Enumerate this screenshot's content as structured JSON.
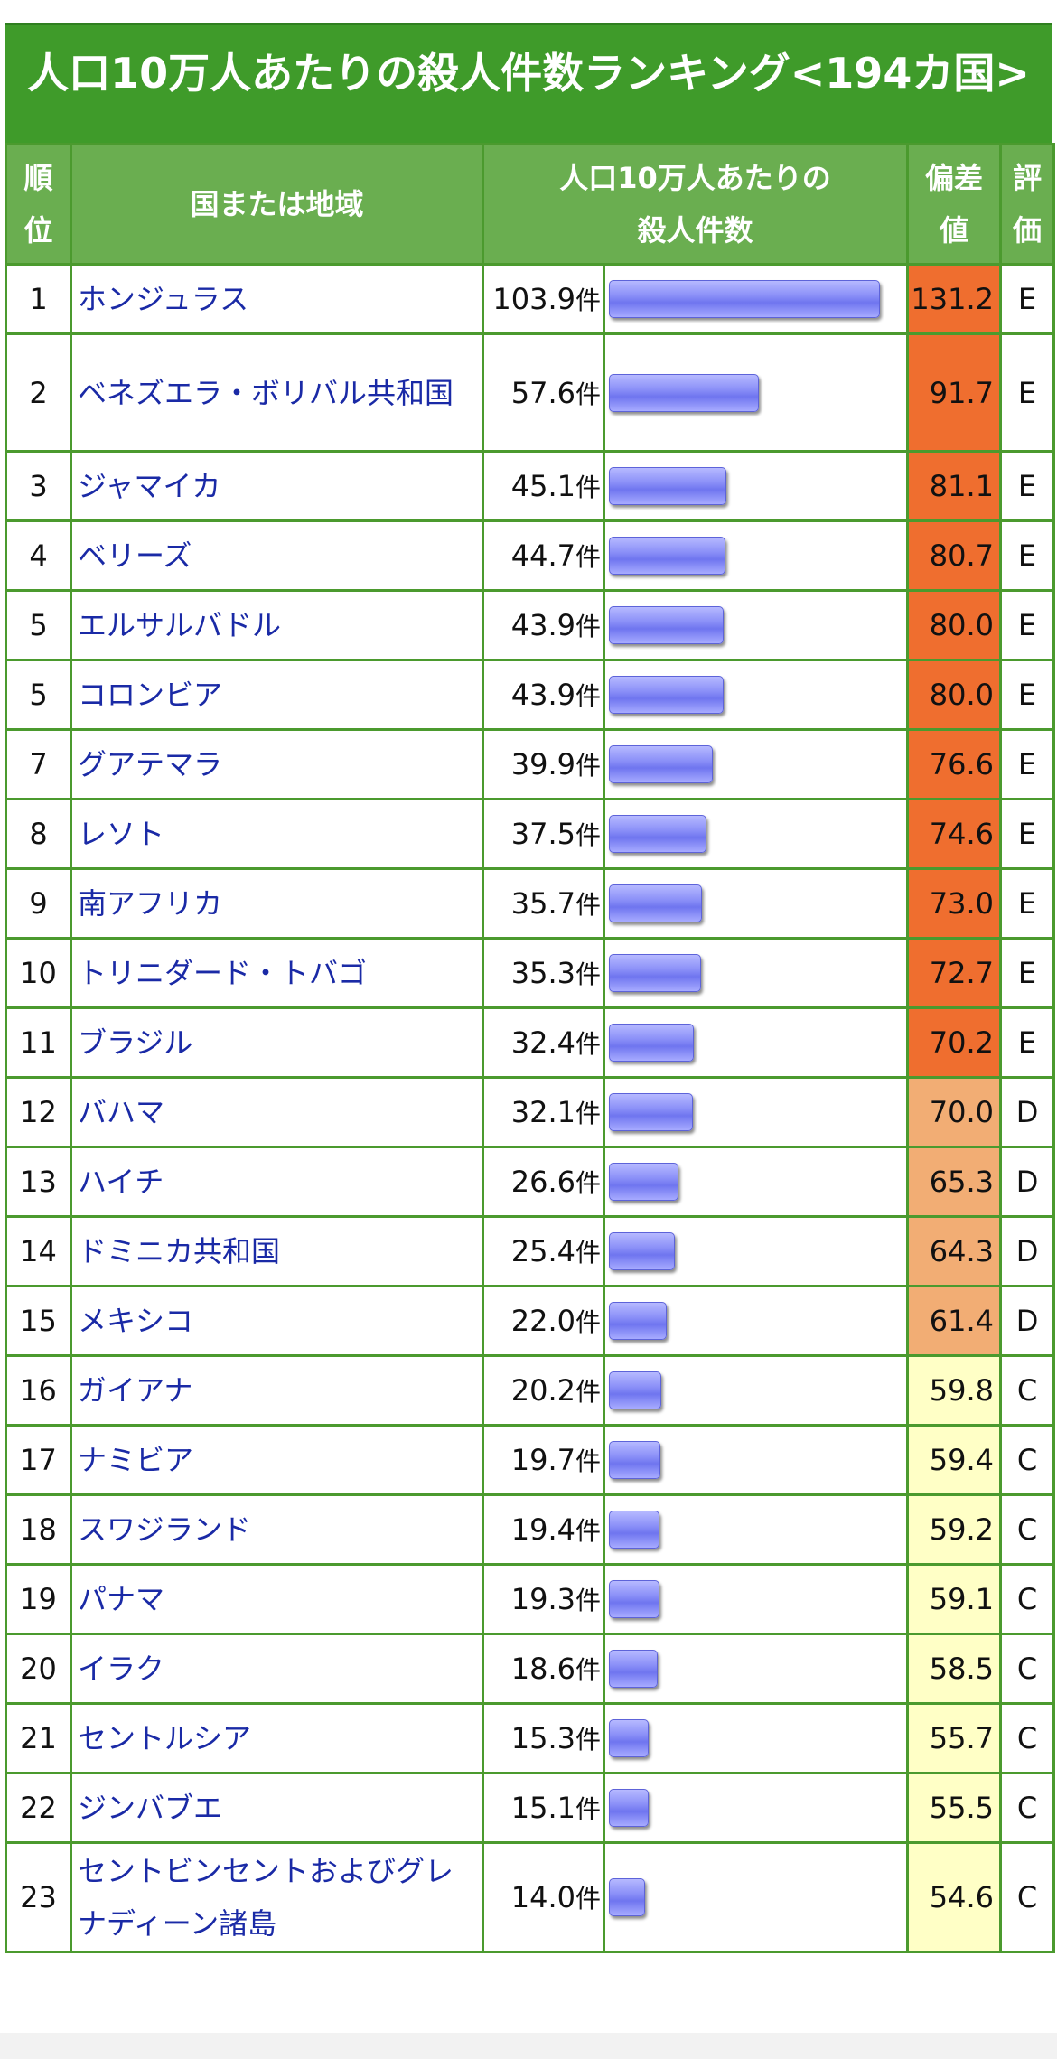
{
  "title": "人口10万人あたりの殺人件数ランキング<194カ国>",
  "headers": {
    "rank": "順位",
    "region": "国または地域",
    "value": "人口10万人あたりの殺人件数",
    "deviation": "偏差値",
    "grade": "評価"
  },
  "unit": "件",
  "grade_colors": {
    "E": "#ef6e2f",
    "D": "#f2ad74",
    "C": "#ffffc6"
  },
  "rows": [
    {
      "rank": "1",
      "name": "ホンジュラス",
      "value": 103.9,
      "value_text": "103.9",
      "deviation": "131.2",
      "grade": "E"
    },
    {
      "rank": "2",
      "name": "ベネズエラ・ボリバル共和国",
      "value": 57.6,
      "value_text": "57.6",
      "deviation": "91.7",
      "grade": "E"
    },
    {
      "rank": "3",
      "name": "ジャマイカ",
      "value": 45.1,
      "value_text": "45.1",
      "deviation": "81.1",
      "grade": "E"
    },
    {
      "rank": "4",
      "name": "ベリーズ",
      "value": 44.7,
      "value_text": "44.7",
      "deviation": "80.7",
      "grade": "E"
    },
    {
      "rank": "5",
      "name": "エルサルバドル",
      "value": 43.9,
      "value_text": "43.9",
      "deviation": "80.0",
      "grade": "E"
    },
    {
      "rank": "5",
      "name": "コロンビア",
      "value": 43.9,
      "value_text": "43.9",
      "deviation": "80.0",
      "grade": "E"
    },
    {
      "rank": "7",
      "name": "グアテマラ",
      "value": 39.9,
      "value_text": "39.9",
      "deviation": "76.6",
      "grade": "E"
    },
    {
      "rank": "8",
      "name": "レソト",
      "value": 37.5,
      "value_text": "37.5",
      "deviation": "74.6",
      "grade": "E"
    },
    {
      "rank": "9",
      "name": "南アフリカ",
      "value": 35.7,
      "value_text": "35.7",
      "deviation": "73.0",
      "grade": "E"
    },
    {
      "rank": "10",
      "name": "トリニダード・トバゴ",
      "value": 35.3,
      "value_text": "35.3",
      "deviation": "72.7",
      "grade": "E"
    },
    {
      "rank": "11",
      "name": "ブラジル",
      "value": 32.4,
      "value_text": "32.4",
      "deviation": "70.2",
      "grade": "E"
    },
    {
      "rank": "12",
      "name": "バハマ",
      "value": 32.1,
      "value_text": "32.1",
      "deviation": "70.0",
      "grade": "D"
    },
    {
      "rank": "13",
      "name": "ハイチ",
      "value": 26.6,
      "value_text": "26.6",
      "deviation": "65.3",
      "grade": "D"
    },
    {
      "rank": "14",
      "name": "ドミニカ共和国",
      "value": 25.4,
      "value_text": "25.4",
      "deviation": "64.3",
      "grade": "D"
    },
    {
      "rank": "15",
      "name": "メキシコ",
      "value": 22.0,
      "value_text": "22.0",
      "deviation": "61.4",
      "grade": "D"
    },
    {
      "rank": "16",
      "name": "ガイアナ",
      "value": 20.2,
      "value_text": "20.2",
      "deviation": "59.8",
      "grade": "C"
    },
    {
      "rank": "17",
      "name": "ナミビア",
      "value": 19.7,
      "value_text": "19.7",
      "deviation": "59.4",
      "grade": "C"
    },
    {
      "rank": "18",
      "name": "スワジランド",
      "value": 19.4,
      "value_text": "19.4",
      "deviation": "59.2",
      "grade": "C"
    },
    {
      "rank": "19",
      "name": "パナマ",
      "value": 19.3,
      "value_text": "19.3",
      "deviation": "59.1",
      "grade": "C"
    },
    {
      "rank": "20",
      "name": "イラク",
      "value": 18.6,
      "value_text": "18.6",
      "deviation": "58.5",
      "grade": "C"
    },
    {
      "rank": "21",
      "name": "セントルシア",
      "value": 15.3,
      "value_text": "15.3",
      "deviation": "55.7",
      "grade": "C"
    },
    {
      "rank": "22",
      "name": "ジンバブエ",
      "value": 15.1,
      "value_text": "15.1",
      "deviation": "55.5",
      "grade": "C"
    },
    {
      "rank": "23",
      "name": "セントビンセントおよびグレナディーン諸島",
      "value": 14.0,
      "value_text": "14.0",
      "deviation": "54.6",
      "grade": "C"
    }
  ]
}
